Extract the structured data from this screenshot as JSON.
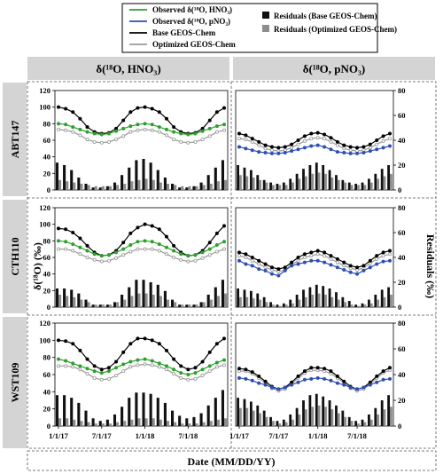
{
  "chart_data": {
    "type": "line",
    "legend": {
      "placement": "top-center",
      "entries": [
        {
          "label": "Observed δ(¹⁸O, HNO₃)",
          "color": "#2ca02c",
          "kind": "line"
        },
        {
          "label": "Observed δ(¹⁸O, pNO₃)",
          "color": "#2d4fb5",
          "kind": "line"
        },
        {
          "label": "Base GEOS-Chem",
          "color": "#000000",
          "kind": "line"
        },
        {
          "label": "Optimized GEOS-Chem",
          "color": "#9a9a9a",
          "kind": "line"
        },
        {
          "label": "Residuals (Base GEOS-Chem)",
          "color": "#111111",
          "kind": "bar"
        },
        {
          "label": "Residuals (Optimized GEOS-Chem)",
          "color": "#8c8c8c",
          "kind": "bar"
        }
      ]
    },
    "columns": [
      "δ(¹⁸O, HNO₃)",
      "δ(¹⁸O, pNO₃)"
    ],
    "rows": [
      "ABT147",
      "CTH110",
      "WST109"
    ],
    "ylabel": "δ(¹⁸O) (‰)",
    "ylabel_right": "Residuals (‰)",
    "xlabel": "Date (MM/DD/YY)",
    "xticks": [
      "1/1/17",
      "7/1/17",
      "1/1/18",
      "7/1/18"
    ],
    "x_tick_positions": [
      0,
      6,
      12,
      18
    ],
    "x": [
      0,
      1,
      2,
      3,
      4,
      5,
      6,
      7,
      8,
      9,
      10,
      11,
      12,
      13,
      14,
      15,
      16,
      17,
      18,
      19,
      20,
      21,
      22,
      23
    ],
    "ylim": [
      0,
      120
    ],
    "yticks": [
      0,
      20,
      40,
      60,
      80,
      100,
      120
    ],
    "ylim_right": [
      0,
      80
    ],
    "yticks_right": [
      0,
      20,
      40,
      60,
      80
    ],
    "panels": [
      {
        "row": "ABT147",
        "col": "HNO3",
        "observed": [
          80,
          79,
          76,
          73,
          70,
          68,
          67,
          68,
          71,
          74,
          77,
          79,
          80,
          79,
          76,
          73,
          70,
          68,
          67,
          68,
          71,
          74,
          77,
          79
        ],
        "base": [
          100,
          98,
          94,
          86,
          76,
          70,
          68,
          69,
          74,
          84,
          94,
          99,
          100,
          98,
          94,
          86,
          76,
          70,
          68,
          69,
          74,
          84,
          94,
          99
        ],
        "optimized": [
          73,
          72,
          70,
          66,
          61,
          58,
          57,
          58,
          61,
          65,
          70,
          72,
          73,
          72,
          70,
          66,
          61,
          58,
          57,
          58,
          61,
          65,
          70,
          72
        ],
        "resid_base": [
          22,
          20,
          16,
          10,
          5,
          2,
          2,
          3,
          6,
          12,
          18,
          24,
          25,
          22,
          16,
          10,
          5,
          2,
          2,
          3,
          6,
          12,
          18,
          24
        ],
        "resid_opt": [
          8,
          7,
          6,
          5,
          4,
          3,
          3,
          3,
          4,
          5,
          7,
          8,
          9,
          8,
          6,
          5,
          4,
          3,
          3,
          3,
          4,
          5,
          7,
          8
        ]
      },
      {
        "row": "ABT147",
        "col": "pNO3",
        "observed": [
          52,
          50,
          48,
          46,
          45,
          44,
          44,
          45,
          47,
          49,
          51,
          53,
          54,
          52,
          49,
          46,
          45,
          44,
          44,
          45,
          47,
          49,
          51,
          53
        ],
        "base": [
          68,
          66,
          62,
          58,
          54,
          52,
          51,
          52,
          55,
          60,
          65,
          68,
          69,
          67,
          63,
          58,
          54,
          52,
          51,
          52,
          55,
          60,
          65,
          68
        ],
        "optimized": [
          62,
          61,
          58,
          54,
          50,
          48,
          47,
          48,
          51,
          55,
          59,
          62,
          63,
          62,
          58,
          54,
          50,
          48,
          47,
          48,
          51,
          55,
          59,
          62
        ],
        "resid_base": [
          20,
          18,
          16,
          12,
          8,
          6,
          5,
          6,
          9,
          13,
          17,
          20,
          22,
          20,
          16,
          12,
          8,
          6,
          5,
          6,
          9,
          13,
          17,
          20
        ],
        "resid_opt": [
          12,
          11,
          10,
          8,
          6,
          4,
          4,
          4,
          6,
          9,
          11,
          13,
          14,
          13,
          10,
          8,
          6,
          4,
          4,
          4,
          6,
          9,
          11,
          13
        ]
      },
      {
        "row": "CTH110",
        "col": "HNO3",
        "observed": [
          80,
          79,
          76,
          72,
          68,
          64,
          62,
          63,
          66,
          70,
          75,
          79,
          80,
          79,
          76,
          72,
          68,
          64,
          62,
          63,
          66,
          70,
          75,
          79
        ],
        "base": [
          95,
          94,
          90,
          83,
          74,
          66,
          62,
          63,
          68,
          78,
          89,
          96,
          100,
          98,
          94,
          85,
          74,
          66,
          62,
          63,
          68,
          78,
          89,
          98
        ],
        "optimized": [
          70,
          70,
          68,
          64,
          60,
          57,
          55,
          56,
          59,
          63,
          67,
          70,
          70,
          70,
          68,
          64,
          60,
          57,
          55,
          56,
          59,
          63,
          67,
          70
        ],
        "resid_base": [
          15,
          15,
          14,
          11,
          6,
          2,
          2,
          2,
          4,
          10,
          16,
          22,
          22,
          20,
          18,
          13,
          6,
          2,
          2,
          2,
          4,
          10,
          16,
          22
        ],
        "resid_opt": [
          10,
          9,
          8,
          6,
          4,
          2,
          2,
          2,
          4,
          6,
          9,
          11,
          11,
          10,
          9,
          6,
          4,
          2,
          2,
          2,
          4,
          6,
          9,
          11
        ]
      },
      {
        "row": "CTH110",
        "col": "pNO3",
        "observed": [
          56,
          52,
          50,
          46,
          44,
          40,
          38,
          44,
          50,
          52,
          54,
          56,
          56,
          54,
          51,
          48,
          45,
          42,
          40,
          44,
          48,
          52,
          55,
          56
        ],
        "base": [
          66,
          64,
          60,
          56,
          52,
          48,
          46,
          48,
          54,
          60,
          64,
          66,
          68,
          66,
          62,
          58,
          54,
          50,
          48,
          50,
          56,
          62,
          66,
          68
        ],
        "optimized": [
          62,
          60,
          56,
          52,
          48,
          45,
          43,
          45,
          51,
          56,
          60,
          62,
          64,
          62,
          58,
          54,
          50,
          47,
          45,
          47,
          53,
          58,
          62,
          64
        ],
        "resid_base": [
          15,
          14,
          13,
          11,
          8,
          4,
          2,
          3,
          6,
          10,
          14,
          16,
          18,
          17,
          15,
          12,
          8,
          5,
          2,
          3,
          6,
          10,
          14,
          16
        ],
        "resid_opt": [
          8,
          8,
          7,
          6,
          4,
          2,
          1,
          2,
          3,
          6,
          8,
          10,
          11,
          10,
          8,
          6,
          4,
          2,
          1,
          2,
          3,
          6,
          8,
          10
        ]
      },
      {
        "row": "WST109",
        "col": "HNO3",
        "observed": [
          78,
          76,
          73,
          70,
          67,
          64,
          62,
          64,
          68,
          72,
          75,
          77,
          78,
          76,
          73,
          70,
          66,
          62,
          60,
          62,
          66,
          70,
          74,
          77
        ],
        "base": [
          100,
          99,
          96,
          88,
          78,
          70,
          66,
          68,
          75,
          86,
          96,
          102,
          102,
          100,
          96,
          88,
          78,
          70,
          66,
          68,
          75,
          86,
          96,
          102
        ],
        "optimized": [
          70,
          70,
          69,
          66,
          61,
          56,
          54,
          55,
          59,
          64,
          69,
          71,
          72,
          71,
          69,
          66,
          61,
          56,
          54,
          55,
          59,
          64,
          69,
          71
        ],
        "resid_base": [
          24,
          24,
          22,
          18,
          12,
          6,
          4,
          5,
          9,
          15,
          22,
          26,
          26,
          25,
          22,
          18,
          12,
          8,
          6,
          7,
          10,
          16,
          22,
          28
        ],
        "resid_opt": [
          6,
          6,
          5,
          4,
          3,
          2,
          2,
          2,
          3,
          4,
          5,
          6,
          6,
          6,
          5,
          4,
          3,
          2,
          2,
          2,
          3,
          4,
          5,
          6
        ]
      },
      {
        "row": "WST109",
        "col": "pNO3",
        "observed": [
          56,
          55,
          53,
          50,
          48,
          45,
          43,
          45,
          48,
          51,
          54,
          55,
          56,
          55,
          53,
          50,
          48,
          45,
          43,
          45,
          48,
          51,
          54,
          55
        ],
        "base": [
          67,
          66,
          63,
          58,
          52,
          46,
          43,
          45,
          51,
          58,
          64,
          68,
          68,
          67,
          64,
          58,
          52,
          46,
          43,
          45,
          51,
          58,
          64,
          68
        ],
        "optimized": [
          64,
          64,
          61,
          56,
          50,
          44,
          41,
          43,
          49,
          56,
          62,
          65,
          65,
          64,
          61,
          56,
          50,
          44,
          41,
          43,
          49,
          56,
          62,
          65
        ],
        "resid_base": [
          22,
          21,
          19,
          16,
          12,
          7,
          4,
          5,
          9,
          14,
          20,
          24,
          25,
          23,
          20,
          16,
          12,
          7,
          4,
          5,
          9,
          14,
          20,
          24
        ],
        "resid_opt": [
          14,
          14,
          12,
          10,
          7,
          4,
          2,
          3,
          5,
          9,
          13,
          15,
          16,
          15,
          13,
          10,
          7,
          4,
          2,
          3,
          5,
          9,
          13,
          15
        ]
      }
    ]
  }
}
